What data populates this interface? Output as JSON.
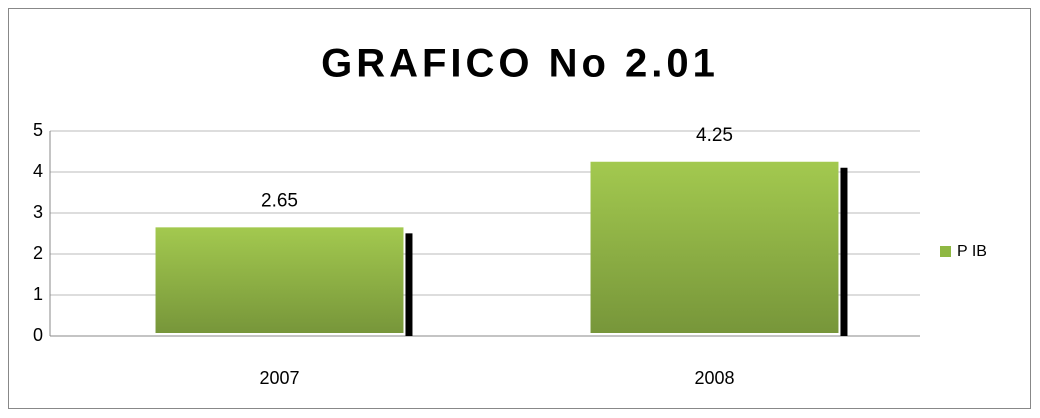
{
  "chart_data": {
    "type": "bar",
    "title": "GRAFICO No 2.01",
    "categories": [
      "2007",
      "2008"
    ],
    "series": [
      {
        "name": "P IB",
        "color": "#8fb843",
        "values": [
          2.65,
          4.25
        ]
      }
    ],
    "ylim": [
      0,
      5
    ],
    "yticks": [
      0,
      1,
      2,
      3,
      4,
      5
    ],
    "grid": true,
    "legend": "right"
  }
}
